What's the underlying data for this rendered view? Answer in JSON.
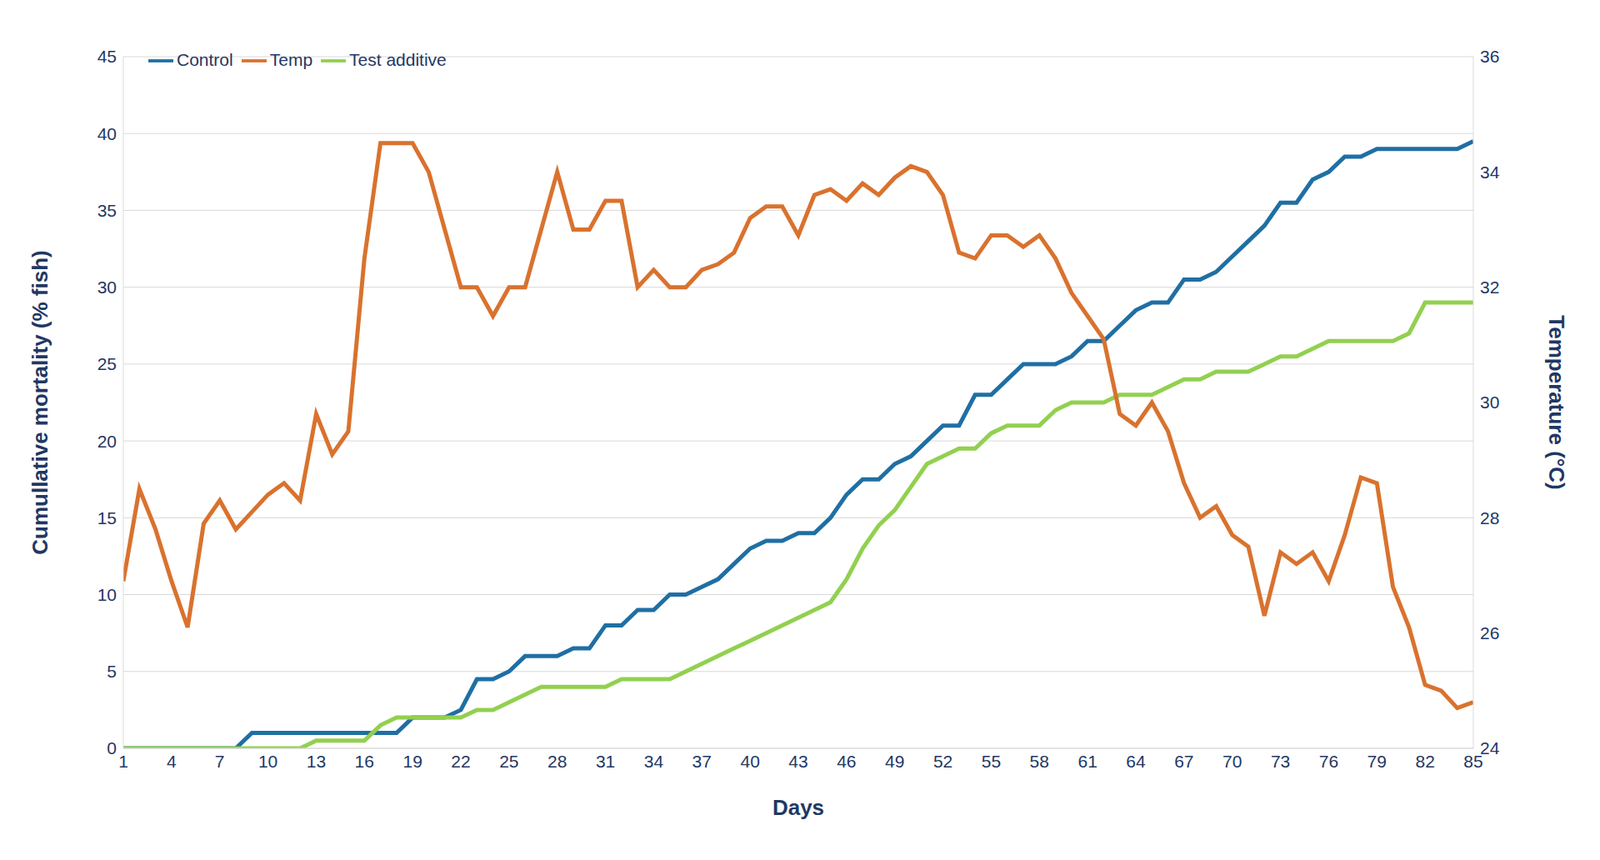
{
  "chart_data": {
    "type": "line",
    "x_label": "Days",
    "y_label": "Cumullative mortality (% fish)",
    "y2_label": "Temperature (°C)",
    "x": [
      1,
      2,
      3,
      4,
      5,
      6,
      7,
      8,
      9,
      10,
      11,
      12,
      13,
      14,
      15,
      16,
      17,
      18,
      19,
      20,
      21,
      22,
      23,
      24,
      25,
      26,
      27,
      28,
      29,
      30,
      31,
      32,
      33,
      34,
      35,
      36,
      37,
      38,
      39,
      40,
      41,
      42,
      43,
      44,
      45,
      46,
      47,
      48,
      49,
      50,
      51,
      52,
      53,
      54,
      55,
      56,
      57,
      58,
      59,
      60,
      61,
      62,
      63,
      64,
      65,
      66,
      67,
      68,
      69,
      70,
      71,
      72,
      73,
      74,
      75,
      76,
      77,
      78,
      79,
      80,
      81,
      82,
      83,
      84,
      85
    ],
    "xlim": [
      1,
      85
    ],
    "xticks": [
      1,
      4,
      7,
      10,
      13,
      16,
      19,
      22,
      25,
      28,
      31,
      34,
      37,
      40,
      43,
      46,
      49,
      52,
      55,
      58,
      61,
      64,
      67,
      70,
      73,
      76,
      79,
      82,
      85
    ],
    "ylim": [
      0,
      45
    ],
    "yticks": [
      0,
      5,
      10,
      15,
      20,
      25,
      30,
      35,
      40,
      45
    ],
    "y2lim": [
      24,
      36
    ],
    "y2ticks": [
      24,
      26,
      28,
      30,
      32,
      34,
      36
    ],
    "grid": true,
    "legend": "upper left",
    "marker": "none",
    "series": [
      {
        "name": "Control",
        "color": "#1f6fa3",
        "values": [
          0,
          0,
          0,
          0,
          0,
          0,
          0,
          0,
          1,
          1,
          1,
          1,
          1,
          1,
          1,
          1,
          1,
          1,
          2,
          2,
          2,
          2.5,
          4.5,
          4.5,
          5,
          6,
          6,
          6,
          6.5,
          6.5,
          8,
          8,
          9,
          9,
          10,
          10,
          10.5,
          11,
          12,
          13,
          13.5,
          13.5,
          14,
          14,
          15,
          16.5,
          17.5,
          17.5,
          18.5,
          19,
          20,
          21,
          21,
          23,
          23,
          24,
          25,
          25,
          25,
          25.5,
          26.5,
          26.5,
          27.5,
          28.5,
          29,
          29,
          30.5,
          30.5,
          31,
          32,
          33,
          34,
          35.5,
          35.5,
          37,
          37.5,
          38.5,
          38.5,
          39,
          39,
          39,
          39,
          39,
          39,
          39.5
        ]
      },
      {
        "name": "Test additive",
        "color": "#92d050",
        "values": [
          0,
          0,
          0,
          0,
          0,
          0,
          0,
          0,
          0,
          0,
          0,
          0,
          0.5,
          0.5,
          0.5,
          0.5,
          1.5,
          2,
          2,
          2,
          2,
          2,
          2.5,
          2.5,
          3,
          3.5,
          4,
          4,
          4,
          4,
          4,
          4.5,
          4.5,
          4.5,
          4.5,
          5,
          5.5,
          6,
          6.5,
          7,
          7.5,
          8,
          8.5,
          9,
          9.5,
          11,
          13,
          14.5,
          15.5,
          17,
          18.5,
          19,
          19.5,
          19.5,
          20.5,
          21,
          21,
          21,
          22,
          22.5,
          22.5,
          22.5,
          23,
          23,
          23,
          23.5,
          24,
          24,
          24.5,
          24.5,
          24.5,
          25,
          25.5,
          25.5,
          26,
          26.5,
          26.5,
          26.5,
          26.5,
          26.5,
          27,
          29,
          29,
          29,
          29
        ]
      },
      {
        "name": "Temp",
        "color": "#d9722e",
        "axis": "y2",
        "values": [
          26.9,
          28.5,
          27.8,
          26.9,
          26.1,
          27.9,
          28.3,
          27.8,
          28.1,
          28.4,
          28.6,
          28.3,
          29.8,
          29.1,
          29.5,
          32.5,
          34.5,
          34.5,
          34.5,
          34,
          33,
          32,
          32,
          31.5,
          32,
          32,
          33,
          34,
          33,
          33,
          33.5,
          33.5,
          32,
          32.3,
          32,
          32,
          32.3,
          32.4,
          32.6,
          33.2,
          33.4,
          33.4,
          32.9,
          33.6,
          33.7,
          33.5,
          33.8,
          33.6,
          33.9,
          34.1,
          34,
          33.6,
          32.6,
          32.5,
          32.9,
          32.9,
          32.7,
          32.9,
          32.5,
          31.9,
          31.5,
          31.1,
          29.8,
          29.6,
          30,
          29.5,
          28.6,
          28,
          28.2,
          27.7,
          27.5,
          26.3,
          27.4,
          27.2,
          27.4,
          26.9,
          27.7,
          28.7,
          28.6,
          26.8,
          26.1,
          25.1,
          25,
          24.7,
          24.8
        ]
      }
    ]
  }
}
